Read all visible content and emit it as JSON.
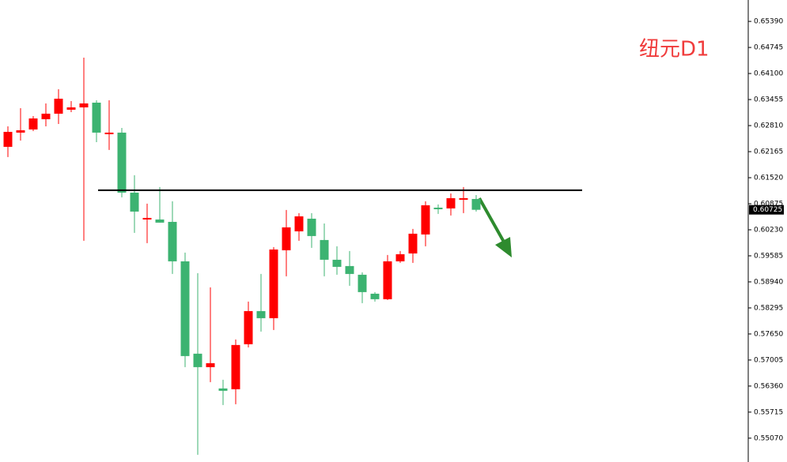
{
  "chart_data": {
    "type": "candlestick",
    "title": "纽元D1",
    "up_color": "#ff0000",
    "down_color": "#3cb371",
    "open": [
      0.62284,
      0.62636,
      0.62714,
      0.62968,
      0.63105,
      0.63203,
      0.63261,
      0.63378,
      0.62597,
      0.62636,
      0.6115,
      0.60485,
      0.60485,
      0.60426,
      0.59449,
      0.57162,
      0.56829,
      0.56301,
      0.56282,
      0.57396,
      0.58217,
      0.58041,
      0.59723,
      0.60192,
      0.60505,
      0.59977,
      0.59488,
      0.59332,
      0.59117,
      0.58647,
      0.58511,
      0.59449,
      0.59644,
      0.60114,
      0.60778,
      0.60759,
      0.60974,
      0.60993
    ],
    "high": [
      0.62792,
      0.63242,
      0.63046,
      0.63359,
      0.63711,
      0.63418,
      0.64493,
      0.63437,
      0.63437,
      0.62753,
      0.6158,
      0.60876,
      0.61287,
      0.60935,
      0.59664,
      0.59156,
      0.58804,
      0.56516,
      0.57514,
      0.58452,
      0.59136,
      0.59801,
      0.6072,
      0.60642,
      0.60642,
      0.60387,
      0.5982,
      0.59703,
      0.59175,
      0.58687,
      0.59605,
      0.59703,
      0.60251,
      0.60935,
      0.60857,
      0.6113,
      0.61287,
      0.61091
    ],
    "low": [
      0.6203,
      0.6244,
      0.62675,
      0.62792,
      0.62851,
      0.63144,
      0.59957,
      0.62401,
      0.62206,
      0.61033,
      0.60153,
      0.59899,
      0.60407,
      0.59136,
      0.56829,
      0.54659,
      0.56458,
      0.55891,
      0.5591,
      0.57318,
      0.57709,
      0.57748,
      0.59078,
      0.59957,
      0.59781,
      0.59078,
      0.59117,
      0.58843,
      0.58413,
      0.58452,
      0.58491,
      0.5941,
      0.5941,
      0.5982,
      0.60622,
      0.60583,
      0.60642,
      0.60681
    ],
    "close": [
      0.62655,
      0.62694,
      0.62987,
      0.63105,
      0.63476,
      0.63261,
      0.63359,
      0.62636,
      0.62636,
      0.6115,
      0.60681,
      0.60524,
      0.60407,
      0.59449,
      0.57103,
      0.56829,
      0.56927,
      0.56243,
      0.57377,
      0.58217,
      0.58041,
      0.59742,
      0.6029,
      0.60563,
      0.60075,
      0.59488,
      0.59312,
      0.59136,
      0.58687,
      0.58511,
      0.59449,
      0.59625,
      0.60133,
      0.60837,
      0.60739,
      0.61013,
      0.61013,
      0.60725
    ],
    "level": 0.6121,
    "ylim": [
      0.5448,
      0.6592
    ],
    "yticks": [
      {
        "value": 0.6539,
        "label": "0.65390"
      },
      0.64745,
      {
        "value": 0.641,
        "label": "0.64100"
      },
      0.63455,
      {
        "value": 0.6281,
        "label": "0.62810"
      },
      0.62165,
      {
        "value": 0.6152,
        "label": "0.61520"
      },
      0.60875,
      {
        "value": 0.6023,
        "label": "0.60230"
      },
      0.59585,
      {
        "value": 0.5894,
        "label": "0.58940"
      },
      0.58295,
      {
        "value": 0.5765,
        "label": "0.57650"
      },
      0.57005,
      {
        "value": 0.5636,
        "label": "0.56360"
      },
      0.55715,
      {
        "value": 0.5507,
        "label": "0.55070"
      }
    ]
  }
}
